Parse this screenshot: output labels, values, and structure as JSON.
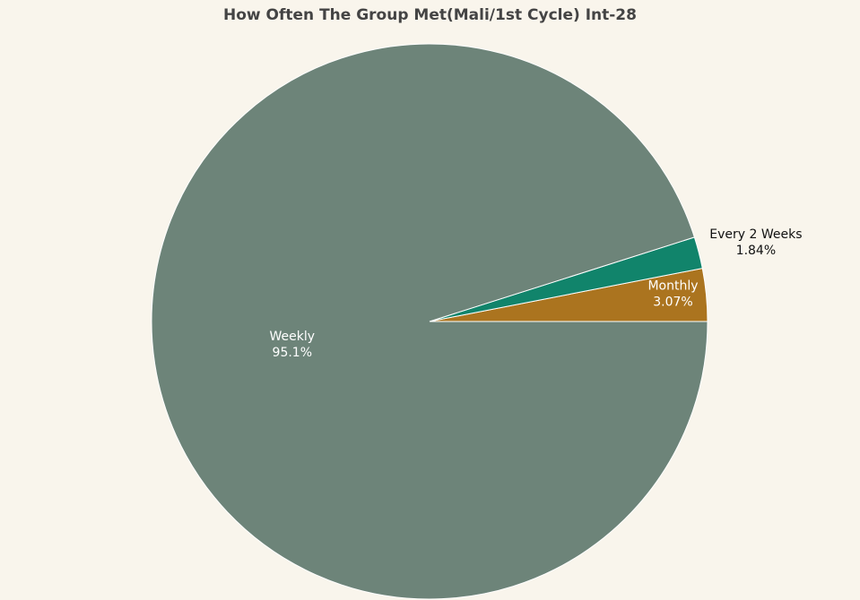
{
  "chart_data": {
    "type": "pie",
    "title": "How Often The Group Met(Mali/1st Cycle) Int-28",
    "slices": [
      {
        "label": "Monthly",
        "value": 3.07,
        "percent_text": "3.07%",
        "color": "#ab741f",
        "label_color": "#ffffff",
        "label_placement": "inside"
      },
      {
        "label": "Every 2 Weeks",
        "value": 1.84,
        "percent_text": "1.84%",
        "color": "#11846b",
        "label_color": "#111111",
        "label_placement": "outside"
      },
      {
        "label": "Weekly",
        "value": 95.1,
        "percent_text": "95.1%",
        "color": "#6d8479",
        "label_color": "#ffffff",
        "label_placement": "inside"
      }
    ],
    "direction": "counterclockwise",
    "start": "3 o'clock"
  },
  "colors": {
    "background": "#f9f5ec",
    "slice_border": "#ffffff",
    "title": "#444444"
  }
}
